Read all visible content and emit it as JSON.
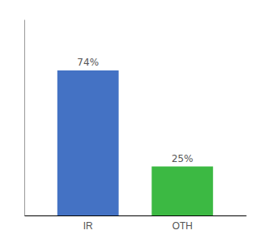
{
  "chart_data": {
    "type": "bar",
    "categories": [
      "IR",
      "OTH"
    ],
    "values": [
      74,
      25
    ],
    "value_labels": [
      "74%",
      "25%"
    ],
    "colors": [
      "#4472c4",
      "#3cb943"
    ],
    "ylim": [
      0,
      100
    ],
    "data_labels": true,
    "tick_labels": "x",
    "grid": false
  }
}
